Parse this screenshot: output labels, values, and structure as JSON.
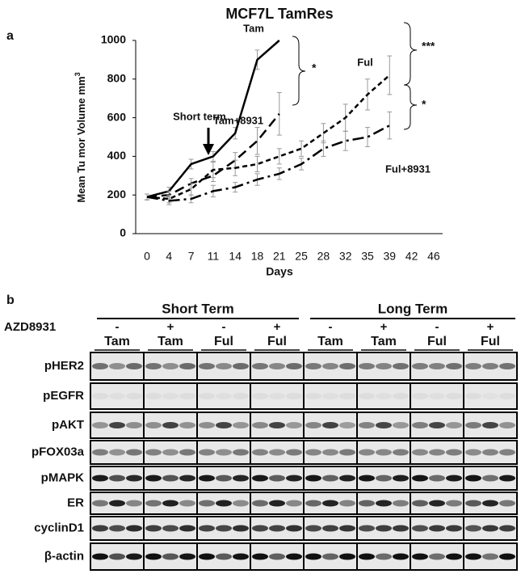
{
  "chart_data": {
    "type": "line",
    "title": "MCF7L TamRes",
    "panel_label": "a",
    "y_label": "Mean Tu mor Volume mm",
    "y_label_sup": "3",
    "x_label": "Days",
    "categories": [
      "0",
      "4",
      "7",
      "11",
      "14",
      "18",
      "21",
      "25",
      "28",
      "32",
      "35",
      "39",
      "42",
      "46"
    ],
    "ylim": [
      0,
      1000
    ],
    "yticks": [
      0,
      200,
      400,
      600,
      800,
      1000
    ],
    "series": [
      {
        "name": "Tam",
        "color": "#000000",
        "dash": "solid",
        "values": [
          190,
          220,
          360,
          400,
          520,
          900,
          1000,
          null,
          null,
          null,
          null,
          null,
          null,
          null
        ],
        "errors": [
          15,
          20,
          25,
          25,
          30,
          50,
          null,
          null,
          null,
          null,
          null,
          null,
          null,
          null
        ]
      },
      {
        "name": "Tam+8931",
        "color": "#000000",
        "dash": "long",
        "values": [
          190,
          200,
          260,
          300,
          380,
          480,
          620,
          null,
          null,
          null,
          null,
          null,
          null,
          null
        ],
        "errors": [
          15,
          20,
          25,
          30,
          40,
          70,
          110,
          null,
          null,
          null,
          null,
          null,
          null,
          null
        ]
      },
      {
        "name": "Ful",
        "color": "#000000",
        "dash": "short",
        "values": [
          190,
          180,
          230,
          330,
          340,
          360,
          400,
          440,
          520,
          600,
          720,
          820,
          null,
          null
        ],
        "errors": [
          15,
          20,
          30,
          40,
          40,
          40,
          40,
          40,
          50,
          70,
          80,
          100,
          null,
          null
        ]
      },
      {
        "name": "Ful+8931",
        "color": "#000000",
        "dash": "dashdot",
        "values": [
          190,
          170,
          180,
          220,
          240,
          280,
          310,
          360,
          440,
          480,
          500,
          560,
          null,
          null
        ],
        "errors": [
          15,
          20,
          20,
          30,
          25,
          30,
          30,
          30,
          40,
          50,
          50,
          70,
          null,
          null
        ]
      }
    ],
    "annotations": {
      "arrow": "Short term",
      "sig1": "*",
      "sig2": "***",
      "sig3": "*"
    }
  },
  "blot": {
    "panel_label": "b",
    "treatment_label": "AZD8931",
    "periods": [
      "Short Term",
      "Long Term"
    ],
    "azd": [
      "-",
      "+",
      "-",
      "+",
      "-",
      "+",
      "-",
      "+"
    ],
    "drugs": [
      "Tam",
      "Tam",
      "Ful",
      "Ful",
      "Tam",
      "Tam",
      "Ful",
      "Ful"
    ],
    "rows": [
      "pHER2",
      "pEGFR",
      "pAKT",
      "pFOX03a",
      "pMAPK",
      "ER",
      "cyclinD1",
      "β-actin"
    ]
  }
}
